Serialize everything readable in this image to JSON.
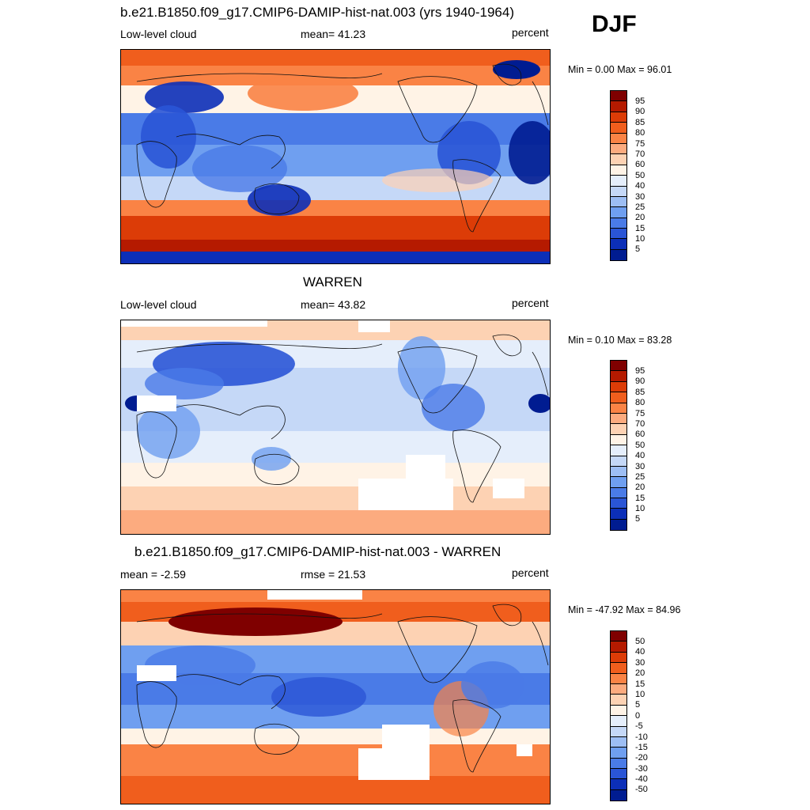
{
  "season": "DJF",
  "panels": [
    {
      "title": "b.e21.B1850.f09_g17.CMIP6-DAMIP-hist-nat.003 (yrs 1940-1964)",
      "left_label": "Low-level cloud",
      "center_label": "mean=  41.23",
      "right_label": "percent",
      "minmax": "Min =   0.00 Max =  96.01",
      "scheme": "abs",
      "colorbar_labels": [
        "95",
        "90",
        "85",
        "80",
        "75",
        "70",
        "60",
        "50",
        "40",
        "30",
        "25",
        "20",
        "15",
        "10",
        "5"
      ]
    },
    {
      "title": "WARREN",
      "left_label": "Low-level cloud",
      "center_label": "mean=  43.82",
      "right_label": "percent",
      "minmax": "Min =   0.10 Max =  83.28",
      "scheme": "abs",
      "colorbar_labels": [
        "95",
        "90",
        "85",
        "80",
        "75",
        "70",
        "60",
        "50",
        "40",
        "30",
        "25",
        "20",
        "15",
        "10",
        "5"
      ]
    },
    {
      "title": "b.e21.B1850.f09_g17.CMIP6-DAMIP-hist-nat.003 - WARREN",
      "left_label": "mean =  -2.59",
      "center_label": "rmse =  21.53",
      "right_label": "percent",
      "minmax": "Min = -47.92 Max =  84.96",
      "scheme": "diff",
      "colorbar_labels": [
        "50",
        "40",
        "30",
        "20",
        "15",
        "10",
        "5",
        "0",
        "-5",
        "-10",
        "-15",
        "-20",
        "-30",
        "-40",
        "-50"
      ]
    }
  ],
  "colors": {
    "palette": [
      "#7f0000",
      "#b51a00",
      "#dc3c07",
      "#f05e1d",
      "#fa8345",
      "#fcab7f",
      "#fdd2b3",
      "#fff3e6",
      "#e5eefb",
      "#c5d8f7",
      "#9dbef4",
      "#6f9ff0",
      "#4a7be7",
      "#2a55d6",
      "#0c2fb8",
      "#001c91"
    ]
  }
}
